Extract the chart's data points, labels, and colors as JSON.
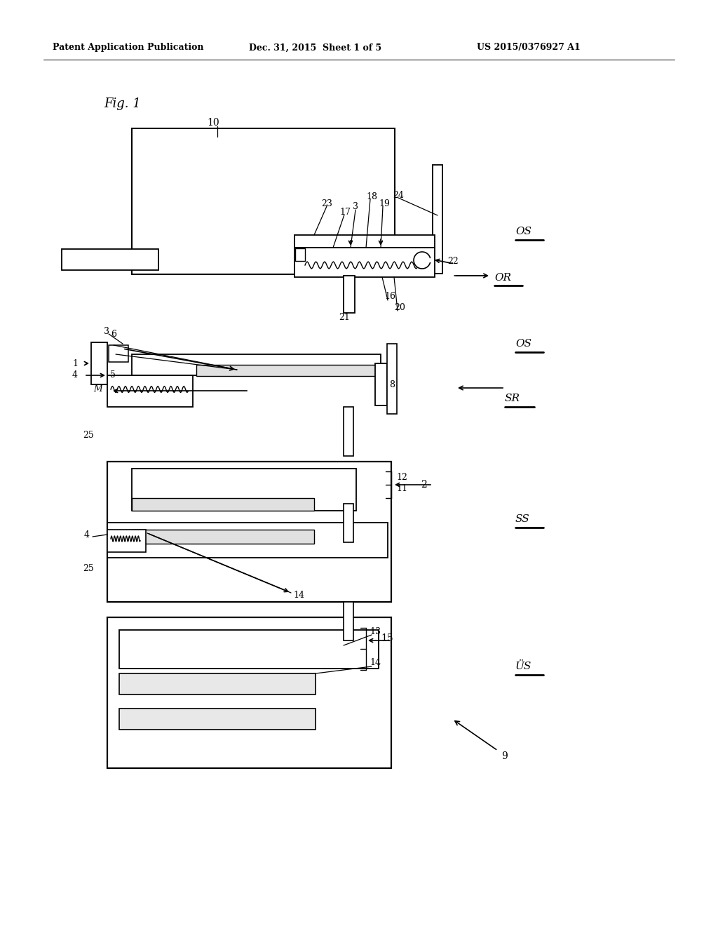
{
  "bg_color": "#ffffff",
  "header_left": "Patent Application Publication",
  "header_mid": "Dec. 31, 2015  Sheet 1 of 5",
  "header_right": "US 2015/0376927 A1"
}
